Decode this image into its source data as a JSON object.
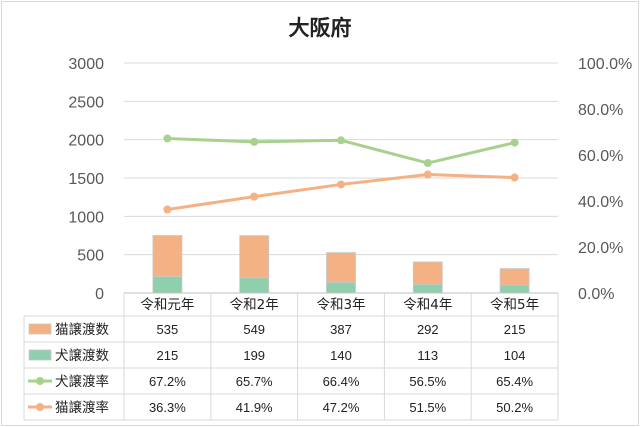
{
  "chart_data": {
    "type": "bar",
    "title": "大阪府",
    "categories": [
      "令和元年",
      "令和2年",
      "令和3年",
      "令和4年",
      "令和5年"
    ],
    "series": [
      {
        "name": "猫譲渡数",
        "kind": "stacked-bar",
        "axis": "left",
        "color": "#f4b183",
        "values": [
          535,
          549,
          387,
          292,
          215
        ],
        "labels": [
          "535",
          "549",
          "387",
          "292",
          "215"
        ]
      },
      {
        "name": "犬譲渡数",
        "kind": "stacked-bar",
        "axis": "left",
        "color": "#8fcfae",
        "values": [
          215,
          199,
          140,
          113,
          104
        ],
        "labels": [
          "215",
          "199",
          "140",
          "113",
          "104"
        ]
      },
      {
        "name": "犬譲渡率",
        "kind": "line",
        "axis": "right",
        "color": "#a9d18e",
        "values": [
          67.2,
          65.7,
          66.4,
          56.5,
          65.4
        ],
        "labels": [
          "67.2%",
          "65.7%",
          "66.4%",
          "56.5%",
          "65.4%"
        ]
      },
      {
        "name": "猫譲渡率",
        "kind": "line",
        "axis": "right",
        "color": "#f4b183",
        "values": [
          36.3,
          41.9,
          47.2,
          51.5,
          50.2
        ],
        "labels": [
          "36.3%",
          "41.9%",
          "47.2%",
          "51.5%",
          "50.2%"
        ]
      }
    ],
    "y_left": {
      "min": 0,
      "max": 3000,
      "ticks": [
        "0",
        "500",
        "1000",
        "1500",
        "2000",
        "2500",
        "3000"
      ]
    },
    "y_right": {
      "min": 0,
      "max": 100,
      "ticks": [
        "0.0%",
        "20.0%",
        "40.0%",
        "60.0%",
        "80.0%",
        "100.0%"
      ]
    },
    "grid": true,
    "legend": "data-table"
  }
}
